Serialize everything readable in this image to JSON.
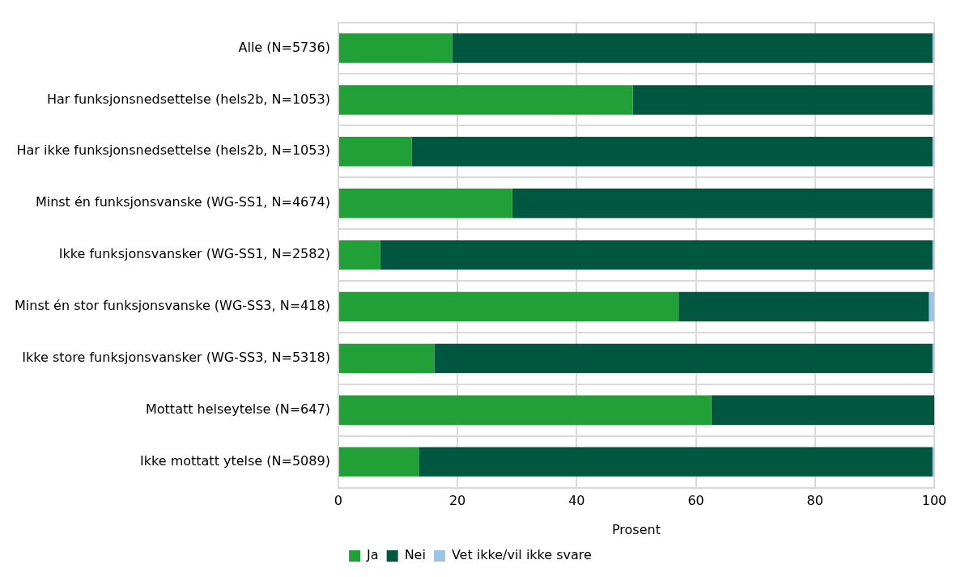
{
  "chart_data": {
    "type": "bar",
    "orientation": "horizontal",
    "stacked": true,
    "xlabel": "Prosent",
    "categories": [
      "Alle (N=5736)",
      "Har funksjonsnedsettelse (hels2b, N=1053)",
      "Har ikke funksjonsnedsettelse (hels2b, N=1053)",
      "Minst én funksjonsvanske (WG-SS1, N=4674)",
      "Ikke funksjonsvansker (WG-SS1, N=2582)",
      "Minst én stor funksjonsvanske (WG-SS3, N=418)",
      "Ikke store funksjonsvansker (WG-SS3, N=5318)",
      "Mottatt helseytelse (N=647)",
      "Ikke mottatt ytelse (N=5089)"
    ],
    "series": [
      {
        "name": "Ja",
        "color": "#21a038",
        "values": [
          19.1,
          49.4,
          12.3,
          29.2,
          7.0,
          57.1,
          16.1,
          62.6,
          13.6
        ]
      },
      {
        "name": "Nei",
        "color": "#00573f",
        "values": [
          80.6,
          50.3,
          87.4,
          70.5,
          92.7,
          42.0,
          83.6,
          37.4,
          86.1
        ]
      },
      {
        "name": "Vet ikke/vil ikke svare",
        "color": "#9dc3e6",
        "values": [
          0.3,
          0.3,
          0.3,
          0.3,
          0.3,
          0.9,
          0.3,
          0,
          0.3
        ]
      }
    ],
    "xlim": [
      0,
      100
    ],
    "xticks": [
      0,
      20,
      40,
      60,
      80,
      100
    ],
    "grid": true,
    "legend": "bottom"
  }
}
